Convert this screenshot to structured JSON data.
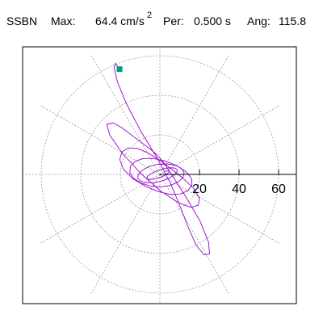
{
  "header": {
    "station": "SSBN",
    "max_label": "Max:",
    "max_value": "64.4 cm/s",
    "max_unit_exp": "2",
    "per_label": "Per:",
    "per_value": "0.500 s",
    "ang_label": "Ang:",
    "ang_value": "115.8"
  },
  "chart_data": {
    "type": "line",
    "title": "SSBN Max: 64.4 cm/s2 Per: 0.500 s Ang: 115.8",
    "radial_ticks": [
      20,
      40,
      60
    ],
    "radial_tick_labels": [
      "20",
      "40",
      "60"
    ],
    "r_max": 70,
    "angular_grid_step_deg": 30,
    "grid": true,
    "series": [
      {
        "color": "#9400d3",
        "type": "particle-motion trace",
        "marker": {
          "color": "#009e73",
          "shape": "square"
        },
        "x": [
          -20.4,
          -22.5,
          -23.1,
          -21.5,
          -16.8,
          -9.5,
          -1.2,
          5.1,
          9.9,
          14.2,
          18.3,
          22.3,
          25.1,
          24.6,
          20.3,
          13.2,
          6.5,
          1.9,
          -2.4,
          -7.3,
          -13.0,
          -18.8,
          -23.6,
          -26.8,
          -25.3,
          -18.9,
          -9.6,
          0.4,
          9.2,
          15.6,
          19.4,
          20.0,
          16.9,
          11.5,
          5.6,
          -0.5,
          -6.2,
          -11.6,
          -16.1,
          -19.2,
          -20.3,
          -18.4,
          -13.6,
          -7.2,
          -0.5,
          5.4,
          10.3,
          14.0,
          16.2,
          16.1,
          13.3,
          8.4,
          2.4,
          -3.5,
          -8.6,
          -12.5,
          -14.9,
          -15.2,
          -13.3,
          -9.5,
          -4.7,
          0.4,
          5.1,
          9.0,
          11.6,
          12.3,
          11.0,
          7.9,
          3.6,
          -1.1,
          -5.4,
          -8.8,
          -10.9,
          -11.2,
          -9.7,
          -6.8,
          -3.1,
          0.8,
          4.4,
          7.2,
          8.7,
          8.6,
          7.0,
          4.3,
          1.1,
          -2.0,
          -4.6,
          -6.3,
          -6.7,
          -5.8,
          -3.9,
          -1.4,
          1.1,
          3.2,
          4.5,
          4.8,
          4.1,
          2.6
        ],
        "y": [
          53.2,
          56.2,
          54.0,
          46.9,
          35.5,
          21.6,
          7.9,
          -4.0,
          -15.3,
          -26.5,
          -35.7,
          -40.6,
          -40.3,
          -34.3,
          -23.6,
          -11.4,
          -1.0,
          6.1,
          10.8,
          14.6,
          18.9,
          23.3,
          26.1,
          25.3,
          19.8,
          10.6,
          0.4,
          -8.4,
          -14.2,
          -16.6,
          -15.6,
          -12.0,
          -6.9,
          -1.8,
          2.9,
          7.4,
          11.0,
          13.2,
          13.4,
          11.4,
          7.5,
          2.6,
          -2.2,
          -6.1,
          -8.8,
          -10.1,
          -9.9,
          -8.3,
          -5.6,
          -2.2,
          1.3,
          4.5,
          6.9,
          8.1,
          8.0,
          6.6,
          4.1,
          1.0,
          -2.0,
          -4.4,
          -5.9,
          -6.3,
          -5.6,
          -4.0,
          -1.7,
          0.8,
          3.0,
          4.6,
          5.3,
          5.1,
          4.0,
          2.2,
          0.1,
          -1.9,
          -3.4,
          -4.2,
          -4.2,
          -3.4,
          -2.0,
          -0.3,
          1.3,
          2.6,
          3.3,
          3.3,
          2.7,
          1.6,
          0.3,
          -1.0,
          -2.0,
          -2.5,
          -2.5,
          -2.0,
          -1.1,
          0.0,
          1.0,
          1.6,
          1.8,
          1.6
        ]
      }
    ],
    "colors": {
      "trace": "#9400d3",
      "marker": "#009e73",
      "grid": "#9a9a9a",
      "axis": "#000000"
    }
  }
}
